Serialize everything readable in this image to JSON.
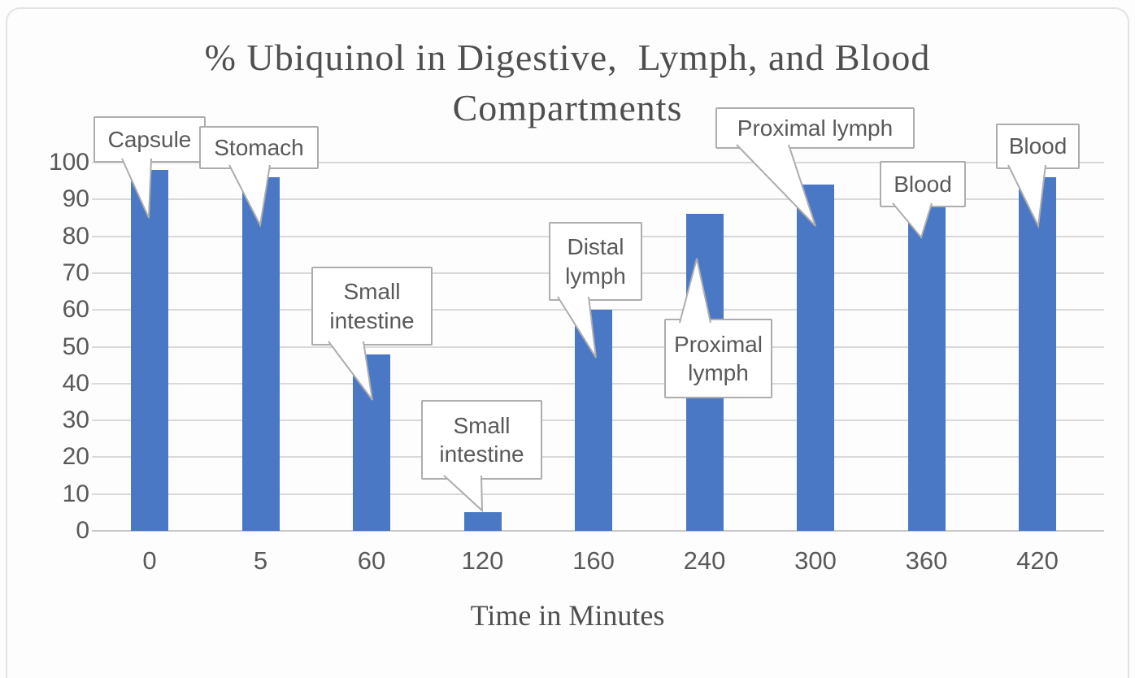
{
  "page": {
    "background": "#fdfdfd"
  },
  "chart_data": {
    "type": "bar",
    "title_line1": "% Ubiquinol in Digestive,  Lymph, and Blood",
    "title_line2": "Compartments",
    "xlabel": "Time in Minutes",
    "ylabel": "",
    "categories": [
      "0",
      "5",
      "60",
      "120",
      "160",
      "240",
      "300",
      "360",
      "420"
    ],
    "values": [
      98,
      96,
      48,
      5,
      60,
      86,
      94,
      88,
      96
    ],
    "yticks": [
      "100",
      "90",
      "80",
      "70",
      "60",
      "50",
      "40",
      "30",
      "20",
      "10",
      "0"
    ],
    "ylim": [
      0,
      100
    ],
    "grid": true,
    "legend": "none",
    "bar_color": "#4a78c5",
    "gridline_color": "#d9d9d9",
    "callout_border_color": "#adadad",
    "annotations": [
      {
        "label": "Capsule",
        "points_to_category": "0"
      },
      {
        "label": "Stomach",
        "points_to_category": "5"
      },
      {
        "label": "Small intestine",
        "points_to_category": "60"
      },
      {
        "label": "Small intestine",
        "points_to_category": "120"
      },
      {
        "label": "Distal lymph",
        "points_to_category": "160"
      },
      {
        "label": "Proximal lymph",
        "points_to_category": "240"
      },
      {
        "label": "Proximal lymph",
        "points_to_category": "300"
      },
      {
        "label": "Blood",
        "points_to_category": "360"
      },
      {
        "label": "Blood",
        "points_to_category": "420"
      }
    ]
  }
}
